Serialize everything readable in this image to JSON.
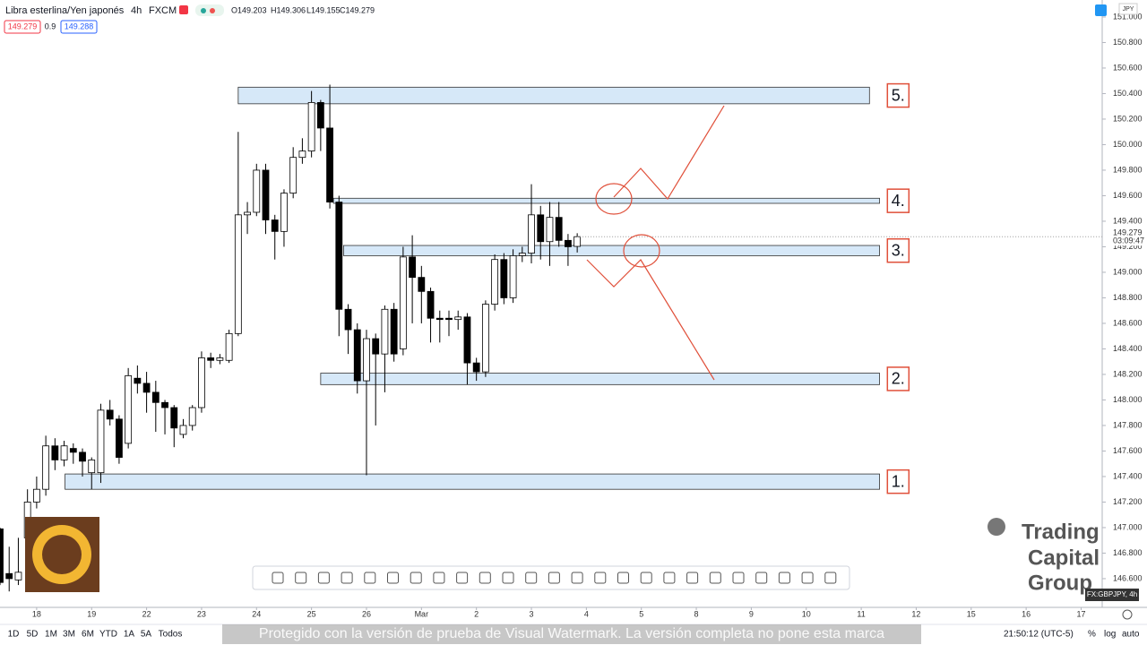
{
  "chart_data": {
    "type": "candlestick",
    "x": [
      -4,
      -3,
      -2,
      -1,
      0,
      1,
      2,
      3,
      4,
      5,
      6,
      7,
      8,
      9,
      10,
      11,
      12,
      13,
      14,
      15,
      16,
      17,
      18,
      19,
      20,
      21,
      22,
      23,
      24,
      25,
      26,
      27,
      28,
      29,
      30,
      31,
      32,
      33,
      34,
      35,
      36,
      37,
      38,
      39,
      40,
      41,
      42,
      43,
      44,
      45,
      46,
      47,
      48,
      49,
      50,
      51,
      52,
      53,
      54,
      55,
      56,
      57,
      58,
      59
    ],
    "open": [
      146.99,
      146.64,
      146.59,
      146.92,
      147.2,
      147.3,
      147.64,
      147.53,
      147.62,
      147.59,
      147.43,
      147.43,
      147.92,
      147.85,
      147.66,
      148.17,
      148.13,
      148.06,
      147.98,
      147.94,
      147.73,
      147.8,
      147.94,
      148.33,
      148.31,
      148.31,
      148.52,
      149.45,
      149.47,
      149.8,
      149.41,
      149.32,
      149.62,
      149.9,
      149.95,
      150.33,
      150.13,
      149.55,
      148.71,
      148.55,
      148.15,
      148.48,
      148.36,
      148.71,
      148.4,
      149.12,
      148.96,
      148.85,
      148.64,
      148.64,
      148.63,
      148.65,
      148.29,
      148.22,
      148.75,
      149.1,
      148.8,
      149.13,
      149.15,
      149.45,
      149.24,
      149.43,
      149.25,
      149.203
    ],
    "high": [
      147.0,
      146.85,
      146.92,
      147.3,
      147.4,
      147.72,
      147.7,
      147.68,
      147.66,
      147.62,
      147.55,
      147.97,
      148.0,
      147.88,
      148.25,
      148.27,
      148.22,
      148.15,
      148.0,
      147.96,
      147.85,
      147.96,
      148.38,
      148.37,
      148.36,
      148.55,
      150.1,
      149.55,
      149.85,
      149.85,
      149.45,
      149.65,
      149.98,
      150.05,
      150.42,
      150.35,
      150.47,
      149.6,
      148.75,
      148.6,
      148.55,
      148.52,
      148.74,
      148.76,
      149.2,
      149.29,
      149.05,
      148.88,
      148.7,
      148.7,
      148.7,
      148.68,
      148.33,
      148.78,
      149.14,
      149.15,
      149.18,
      149.2,
      149.69,
      149.52,
      149.55,
      149.55,
      149.3,
      149.306
    ],
    "low": [
      146.55,
      146.5,
      146.55,
      146.9,
      147.15,
      147.25,
      147.45,
      147.48,
      147.5,
      147.4,
      147.3,
      147.35,
      147.8,
      147.5,
      147.62,
      148.05,
      147.9,
      147.75,
      147.73,
      147.63,
      147.7,
      147.76,
      147.9,
      148.25,
      148.28,
      148.29,
      148.5,
      149.3,
      149.44,
      149.3,
      149.1,
      149.2,
      149.58,
      149.85,
      149.9,
      149.95,
      149.5,
      148.5,
      148.36,
      148.05,
      147.41,
      147.8,
      148.06,
      148.3,
      148.35,
      148.6,
      148.6,
      148.45,
      148.45,
      148.5,
      148.55,
      148.12,
      148.15,
      148.18,
      148.7,
      148.75,
      148.76,
      149.08,
      149.07,
      149.1,
      149.05,
      149.2,
      149.05,
      149.155
    ],
    "close": [
      146.57,
      146.6,
      146.65,
      147.2,
      147.3,
      147.64,
      147.53,
      147.64,
      147.59,
      147.52,
      147.53,
      147.92,
      147.85,
      147.55,
      148.19,
      148.13,
      148.06,
      147.98,
      147.94,
      147.78,
      147.8,
      147.94,
      148.33,
      148.31,
      148.33,
      148.52,
      149.45,
      149.47,
      149.8,
      149.41,
      149.32,
      149.62,
      149.9,
      149.95,
      150.33,
      150.13,
      149.55,
      148.71,
      148.55,
      148.15,
      148.48,
      148.36,
      148.71,
      148.36,
      149.12,
      148.96,
      148.85,
      148.64,
      148.63,
      148.63,
      148.65,
      148.29,
      148.22,
      148.75,
      149.1,
      148.8,
      149.13,
      149.15,
      149.45,
      149.24,
      149.43,
      149.25,
      149.2,
      149.279
    ],
    "up_color": "#ffffff",
    "down_color": "#000000",
    "xlim": [
      -4,
      116.3
    ],
    "ylim": [
      146.375,
      151.133
    ],
    "xticks": [
      {
        "value": 0,
        "label": "18"
      },
      {
        "value": 6,
        "label": "19"
      },
      {
        "value": 12,
        "label": "22"
      },
      {
        "value": 18,
        "label": "23"
      },
      {
        "value": 24,
        "label": "24"
      },
      {
        "value": 30,
        "label": "25"
      },
      {
        "value": 36,
        "label": "26"
      },
      {
        "value": 42,
        "label": "Mar"
      },
      {
        "value": 48,
        "label": "2"
      },
      {
        "value": 54,
        "label": "3"
      },
      {
        "value": 60,
        "label": "4"
      },
      {
        "value": 66,
        "label": "5"
      },
      {
        "value": 72,
        "label": "8"
      },
      {
        "value": 78,
        "label": "9"
      },
      {
        "value": 84,
        "label": "10"
      },
      {
        "value": 90,
        "label": "11"
      },
      {
        "value": 96,
        "label": "12"
      },
      {
        "value": 102,
        "label": "15"
      },
      {
        "value": 108,
        "label": "16"
      },
      {
        "value": 114,
        "label": "17"
      }
    ],
    "yticks": [
      {
        "value": 146.6,
        "label": "146.600"
      },
      {
        "value": 146.8,
        "label": "146.800"
      },
      {
        "value": 147.0,
        "label": "147.000"
      },
      {
        "value": 147.2,
        "label": "147.200"
      },
      {
        "value": 147.4,
        "label": "147.400"
      },
      {
        "value": 147.6,
        "label": "147.600"
      },
      {
        "value": 147.8,
        "label": "147.800"
      },
      {
        "value": 148.0,
        "label": "148.000"
      },
      {
        "value": 148.2,
        "label": "148.200"
      },
      {
        "value": 148.4,
        "label": "148.400"
      },
      {
        "value": 148.6,
        "label": "148.600"
      },
      {
        "value": 148.8,
        "label": "148.800"
      },
      {
        "value": 149.0,
        "label": "149.000"
      },
      {
        "value": 149.2,
        "label": "149.200"
      },
      {
        "value": 149.4,
        "label": "149.400"
      },
      {
        "value": 149.6,
        "label": "149.600"
      },
      {
        "value": 149.8,
        "label": "149.800"
      },
      {
        "value": 150.0,
        "label": "150.000"
      },
      {
        "value": 150.2,
        "label": "150.200"
      },
      {
        "value": 150.4,
        "label": "150.400"
      },
      {
        "value": 150.6,
        "label": "150.600"
      },
      {
        "value": 150.8,
        "label": "150.800"
      },
      {
        "value": 151.0,
        "label": "151.000"
      }
    ],
    "zones": [
      {
        "label": "1.",
        "low": 147.3,
        "high": 147.42,
        "x": [
          3.1,
          92.0
        ]
      },
      {
        "label": "2.",
        "low": 148.12,
        "high": 148.21,
        "x": [
          31.0,
          92.0
        ]
      },
      {
        "label": "3.",
        "low": 149.13,
        "high": 149.21,
        "x": [
          33.5,
          92.0
        ]
      },
      {
        "label": "4.",
        "low": 149.54,
        "high": 149.58,
        "x": [
          32.4,
          92.0
        ]
      },
      {
        "label": "5.",
        "low": 150.32,
        "high": 150.45,
        "x": [
          22.0,
          90.9
        ]
      }
    ],
    "zone_color": "#d6e8f8"
  },
  "ui": {
    "symbol": "Libra esterlina/Yen japonés",
    "interval": "4h",
    "source": "FXCM",
    "ohlc": [
      "O149.203",
      "H149.306",
      "L149.155",
      "C149.279"
    ],
    "sell": "149.279",
    "spread": "0.9",
    "buy": "149.288",
    "currency": "JPY",
    "last_price": "149.279",
    "countdown": "03:09:47",
    "ranges": [
      "1D",
      "5D",
      "1M",
      "3M",
      "6M",
      "YTD",
      "1A",
      "5A",
      "Todos"
    ],
    "clock": "21:50:12 (UTC-5)",
    "percent": "%",
    "log": "log",
    "auto": "auto",
    "ticker": "FX:GBPJPY, 4h",
    "watermark": "Protegido con la versión de prueba de Visual Watermark. La versión completa no pone esta marca",
    "logo": [
      "Trading",
      "Capital",
      "Group"
    ]
  }
}
